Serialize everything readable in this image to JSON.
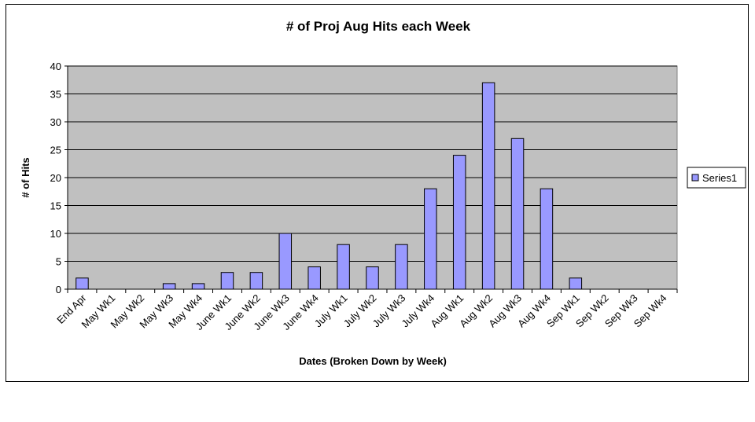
{
  "chart_data": {
    "type": "bar",
    "title": "# of Proj Aug Hits each Week",
    "xlabel": "Dates (Broken Down by Week)",
    "ylabel": "# of Hits",
    "ylim": [
      0,
      40
    ],
    "yticks": [
      0,
      5,
      10,
      15,
      20,
      25,
      30,
      35,
      40
    ],
    "grid": true,
    "legend_position": "right",
    "categories": [
      "End Apr",
      "May Wk1",
      "May Wk2",
      "May Wk3",
      "May Wk4",
      "June Wk1",
      "June Wk2",
      "June Wk3",
      "June Wk4",
      "July Wk1",
      "July Wk2",
      "July Wk3",
      "July Wk4",
      "Aug Wk1",
      "Aug Wk2",
      "Aug Wk3",
      "Aug Wk4",
      "Sep Wk1",
      "Sep Wk2",
      "Sep Wk3",
      "Sep Wk4"
    ],
    "series": [
      {
        "name": "Series1",
        "color": "#9999ff",
        "values": [
          2,
          0,
          0,
          1,
          1,
          3,
          3,
          10,
          4,
          8,
          4,
          8,
          18,
          24,
          37,
          27,
          18,
          2,
          0,
          0,
          0
        ]
      }
    ],
    "plot_background": "#c0c0c0"
  }
}
